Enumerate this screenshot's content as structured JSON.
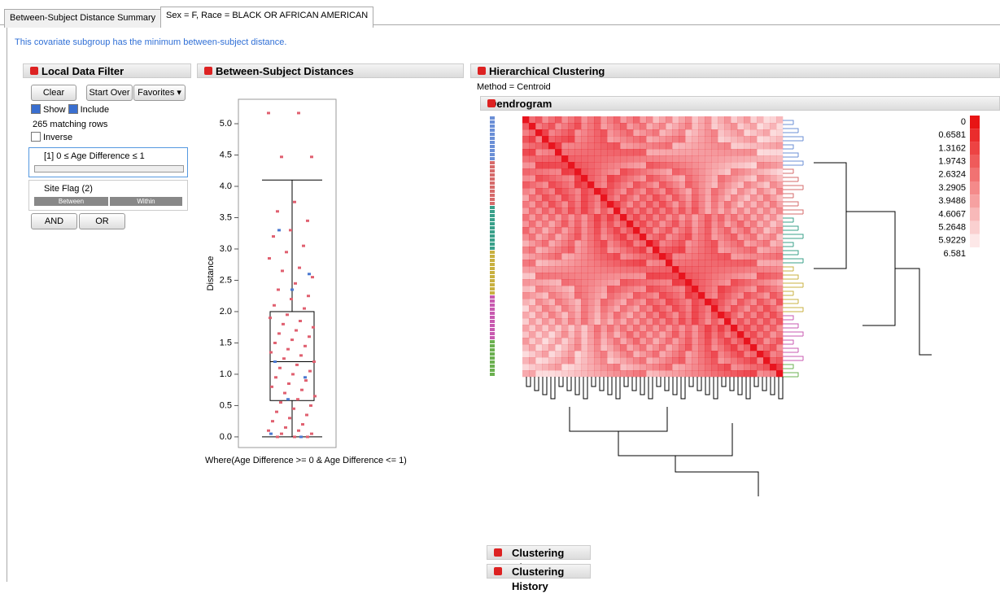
{
  "tabs": [
    "Between-Subject Distance Summary",
    "Sex = F, Race = BLACK OR AFRICAN AMERICAN"
  ],
  "note": "This covariate subgroup has the minimum between-subject distance.",
  "filter": {
    "title": "Local Data Filter",
    "buttons": [
      "Clear",
      "Start Over",
      "Favorites"
    ],
    "show": "Show",
    "include": "Include",
    "matching": "265 matching rows",
    "inverse": "Inverse",
    "range": "[1] 0 ≤ Age Difference ≤ 1",
    "site": "Site Flag (2)",
    "site_levels": [
      "Between",
      "Within"
    ],
    "logic": [
      "AND",
      "OR"
    ]
  },
  "chart_data": {
    "type": "box",
    "title": "Between-Subject Distances",
    "ylabel": "Distance",
    "footnote": "Where(Age Difference >= 0 & Age Difference <= 1)",
    "ylim": [
      -0.17,
      5.39
    ],
    "yticks": [
      {
        "value": 0,
        "label": "0.0"
      },
      0.5,
      {
        "value": 1,
        "label": "1.0"
      },
      1.5,
      {
        "value": 2,
        "label": "2.0"
      },
      2.5,
      {
        "value": 3,
        "label": "3.0"
      },
      3.5,
      {
        "value": 4,
        "label": "4.0"
      },
      4.5,
      {
        "value": 5,
        "label": "5.0"
      }
    ],
    "box": {
      "min": 0,
      "q1": 0.58,
      "median": 1.2,
      "q3": 2.0,
      "max": 4.1
    },
    "series": [
      {
        "name": "Between",
        "color": "#e06070",
        "values": [
          5.17,
          5.17,
          4.47,
          4.47,
          3.75,
          3.6,
          3.45,
          3.3,
          3.2,
          3.05,
          2.95,
          2.85,
          2.7,
          2.65,
          2.55,
          2.45,
          2.35,
          2.25,
          2.2,
          2.1,
          2.05,
          1.95,
          1.9,
          1.85,
          1.8,
          1.75,
          1.7,
          1.65,
          1.6,
          1.55,
          1.5,
          1.45,
          1.4,
          1.35,
          1.3,
          1.25,
          1.2,
          1.15,
          1.1,
          1.05,
          1.0,
          0.95,
          0.9,
          0.85,
          0.8,
          0.75,
          0.7,
          0.65,
          0.6,
          0.55,
          0.5,
          0.45,
          0.4,
          0.35,
          0.3,
          0.25,
          0.2,
          0.15,
          0.1,
          0.1,
          0.05,
          0.05,
          0,
          0,
          0
        ]
      },
      {
        "name": "Within",
        "color": "#4a78d0",
        "values": [
          3.3,
          2.6,
          2.35,
          1.2,
          0.95,
          0.6,
          0.05,
          0
        ]
      }
    ]
  },
  "clustering": {
    "title": "Hierarchical Clustering",
    "method": "Method = Centroid",
    "dendrogram": "Dendrogram",
    "legend": [
      0,
      0.6581,
      1.3162,
      1.9743,
      2.6324,
      3.2905,
      3.9486,
      4.6067,
      5.2648,
      5.9229,
      6.581
    ],
    "history": [
      "Clustering History",
      "Clustering History"
    ]
  }
}
